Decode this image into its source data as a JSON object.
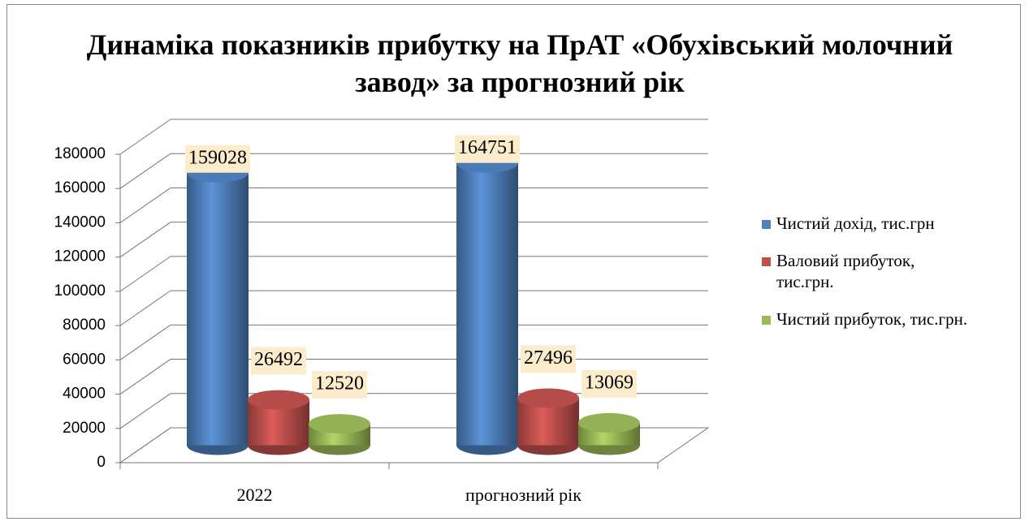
{
  "chart_data": {
    "type": "bar",
    "title": "Динаміка показників прибутку на ПрАТ «Обухівський молочний завод» за прогнозний рік",
    "categories": [
      "2022",
      "прогнозний рік"
    ],
    "series": [
      {
        "name": "Чистий дохід, тис.грн",
        "color": "#4f81bd",
        "values": [
          159028,
          164751
        ]
      },
      {
        "name": "Валовий прибуток, тис.грн.",
        "color": "#c0504d",
        "values": [
          26492,
          27496
        ]
      },
      {
        "name": "Чистий прибуток, тис.грн.",
        "color": "#9bbb59",
        "values": [
          12520,
          13069
        ]
      }
    ],
    "ylim": [
      0,
      180000
    ],
    "yticks": [
      0,
      20000,
      40000,
      60000,
      80000,
      100000,
      120000,
      140000,
      160000,
      180000
    ],
    "grid": true,
    "legend": "right"
  }
}
